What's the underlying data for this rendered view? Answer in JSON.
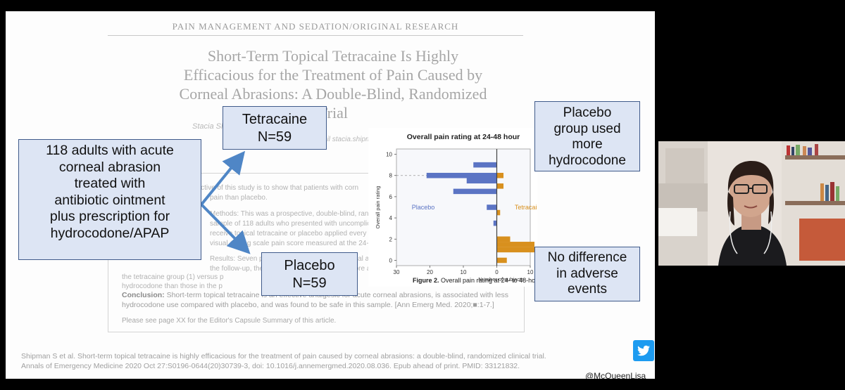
{
  "slide": {
    "journal_header": "PAIN MANAGEMENT AND SEDATION/ORIGINAL RESEARCH",
    "title_lines": [
      "Short-Term Topical Tetracaine Is Highly",
      "Efficacious for the Treatment of Pain Caused by",
      "Corneal Abrasions: A Double-Blind, Randomized",
      "Trial"
    ],
    "authors_fragment": "Stacia Sh                          ark Keu",
    "corresponding_fragment": "Corresponding Author. E-mail stacia.shipman",
    "abstract_lines": [
      "Study objective: The objective of this study is to show that patients with corn",
      "pain than placebo.",
      "Methods: This was a prospective, double-blind, randomized trial of te",
      "sample of 118 adults who presented with uncomplicated co",
      "receive topical tetracaine or placebo applied every 30 minute",
      "visual analog scale pain score measured at the 24- to 48-hour",
      "Results: Seven patients were included in the final analysis, 56",
      "the follow-up, the                                           score a",
      "the tetracaine group (1) versus p                                    interv",
      "hydrocodone than those in the p                                      betw"
    ],
    "conclusion_label": "Conclusion:",
    "conclusion_text_1": " Short-term topical tetracaine is an effective analgesic for acute corneal abrasions, is associated with less",
    "conclusion_text_2": "hydrocodone use compared with placebo, and was found to be safe in this sample. [Ann Emerg Med. 2020;■:1-7.]",
    "see_page": "Please see page XX for the Editor's Capsule Summary of this article.",
    "citation": "Shipman S et al. Short-term topical tetracaine is highly efficacious for the treatment of pain caused by corneal abrasions: a double-blind, randomized clinical trial. Annals of Emergency Medicine 2020 Oct 27:S0196-0644(20)30739-3, doi: 10.1016/j.annemergmed.2020.08.036. Epub ahead of print. PMID: 33121832."
  },
  "callouts": {
    "main": [
      "118 adults with acute",
      "corneal abrasion",
      "treated with",
      "antibiotic ointment",
      "plus prescription for",
      "hydrocodone/APAP"
    ],
    "tetracaine": [
      "Tetracaine",
      "N=59"
    ],
    "placebo": [
      "Placebo",
      "N=59"
    ],
    "hydrocodone": [
      "Placebo",
      "group used",
      "more",
      "hydrocodone"
    ],
    "adverse": [
      "No difference",
      "in adverse",
      "events"
    ]
  },
  "figure_caption_label": "Figure 2.",
  "figure_caption_text": " Overall pain rating at 24- to 48-hour",
  "chart_data": {
    "type": "bar",
    "title": "Overall pain rating at 24-48 hour",
    "xlabel": "Number of subjects",
    "ylabel": "Overall pain rating",
    "y_ticks": [
      0,
      2,
      4,
      6,
      8,
      10
    ],
    "x_ticks": [
      "30",
      "20",
      "10",
      "0",
      "10"
    ],
    "xlim": [
      -30,
      10
    ],
    "ylim": [
      -0.5,
      10.5
    ],
    "orientation": "back-to-back horizontal",
    "series": [
      {
        "name": "Placebo",
        "color": "#5b74c4",
        "points": [
          [
            8,
            21
          ],
          [
            7.5,
            9
          ],
          [
            9,
            7
          ],
          [
            6.5,
            13
          ],
          [
            5,
            3
          ],
          [
            3.5,
            1
          ]
        ]
      },
      {
        "name": "Tetracaine",
        "color": "#d8901e",
        "points": [
          [
            1,
            27
          ],
          [
            1.5,
            14
          ],
          [
            0,
            3
          ],
          [
            2,
            4
          ],
          [
            8,
            2
          ],
          [
            7,
            2
          ],
          [
            4.5,
            1
          ]
        ]
      }
    ],
    "reference_lines": [
      8,
      1
    ]
  },
  "twitter": {
    "handle": "@McQueenLisa",
    "icon": "twitter-bird-icon",
    "color": "#1d9bf0"
  },
  "webcam": {
    "icon": "presenter-video"
  }
}
